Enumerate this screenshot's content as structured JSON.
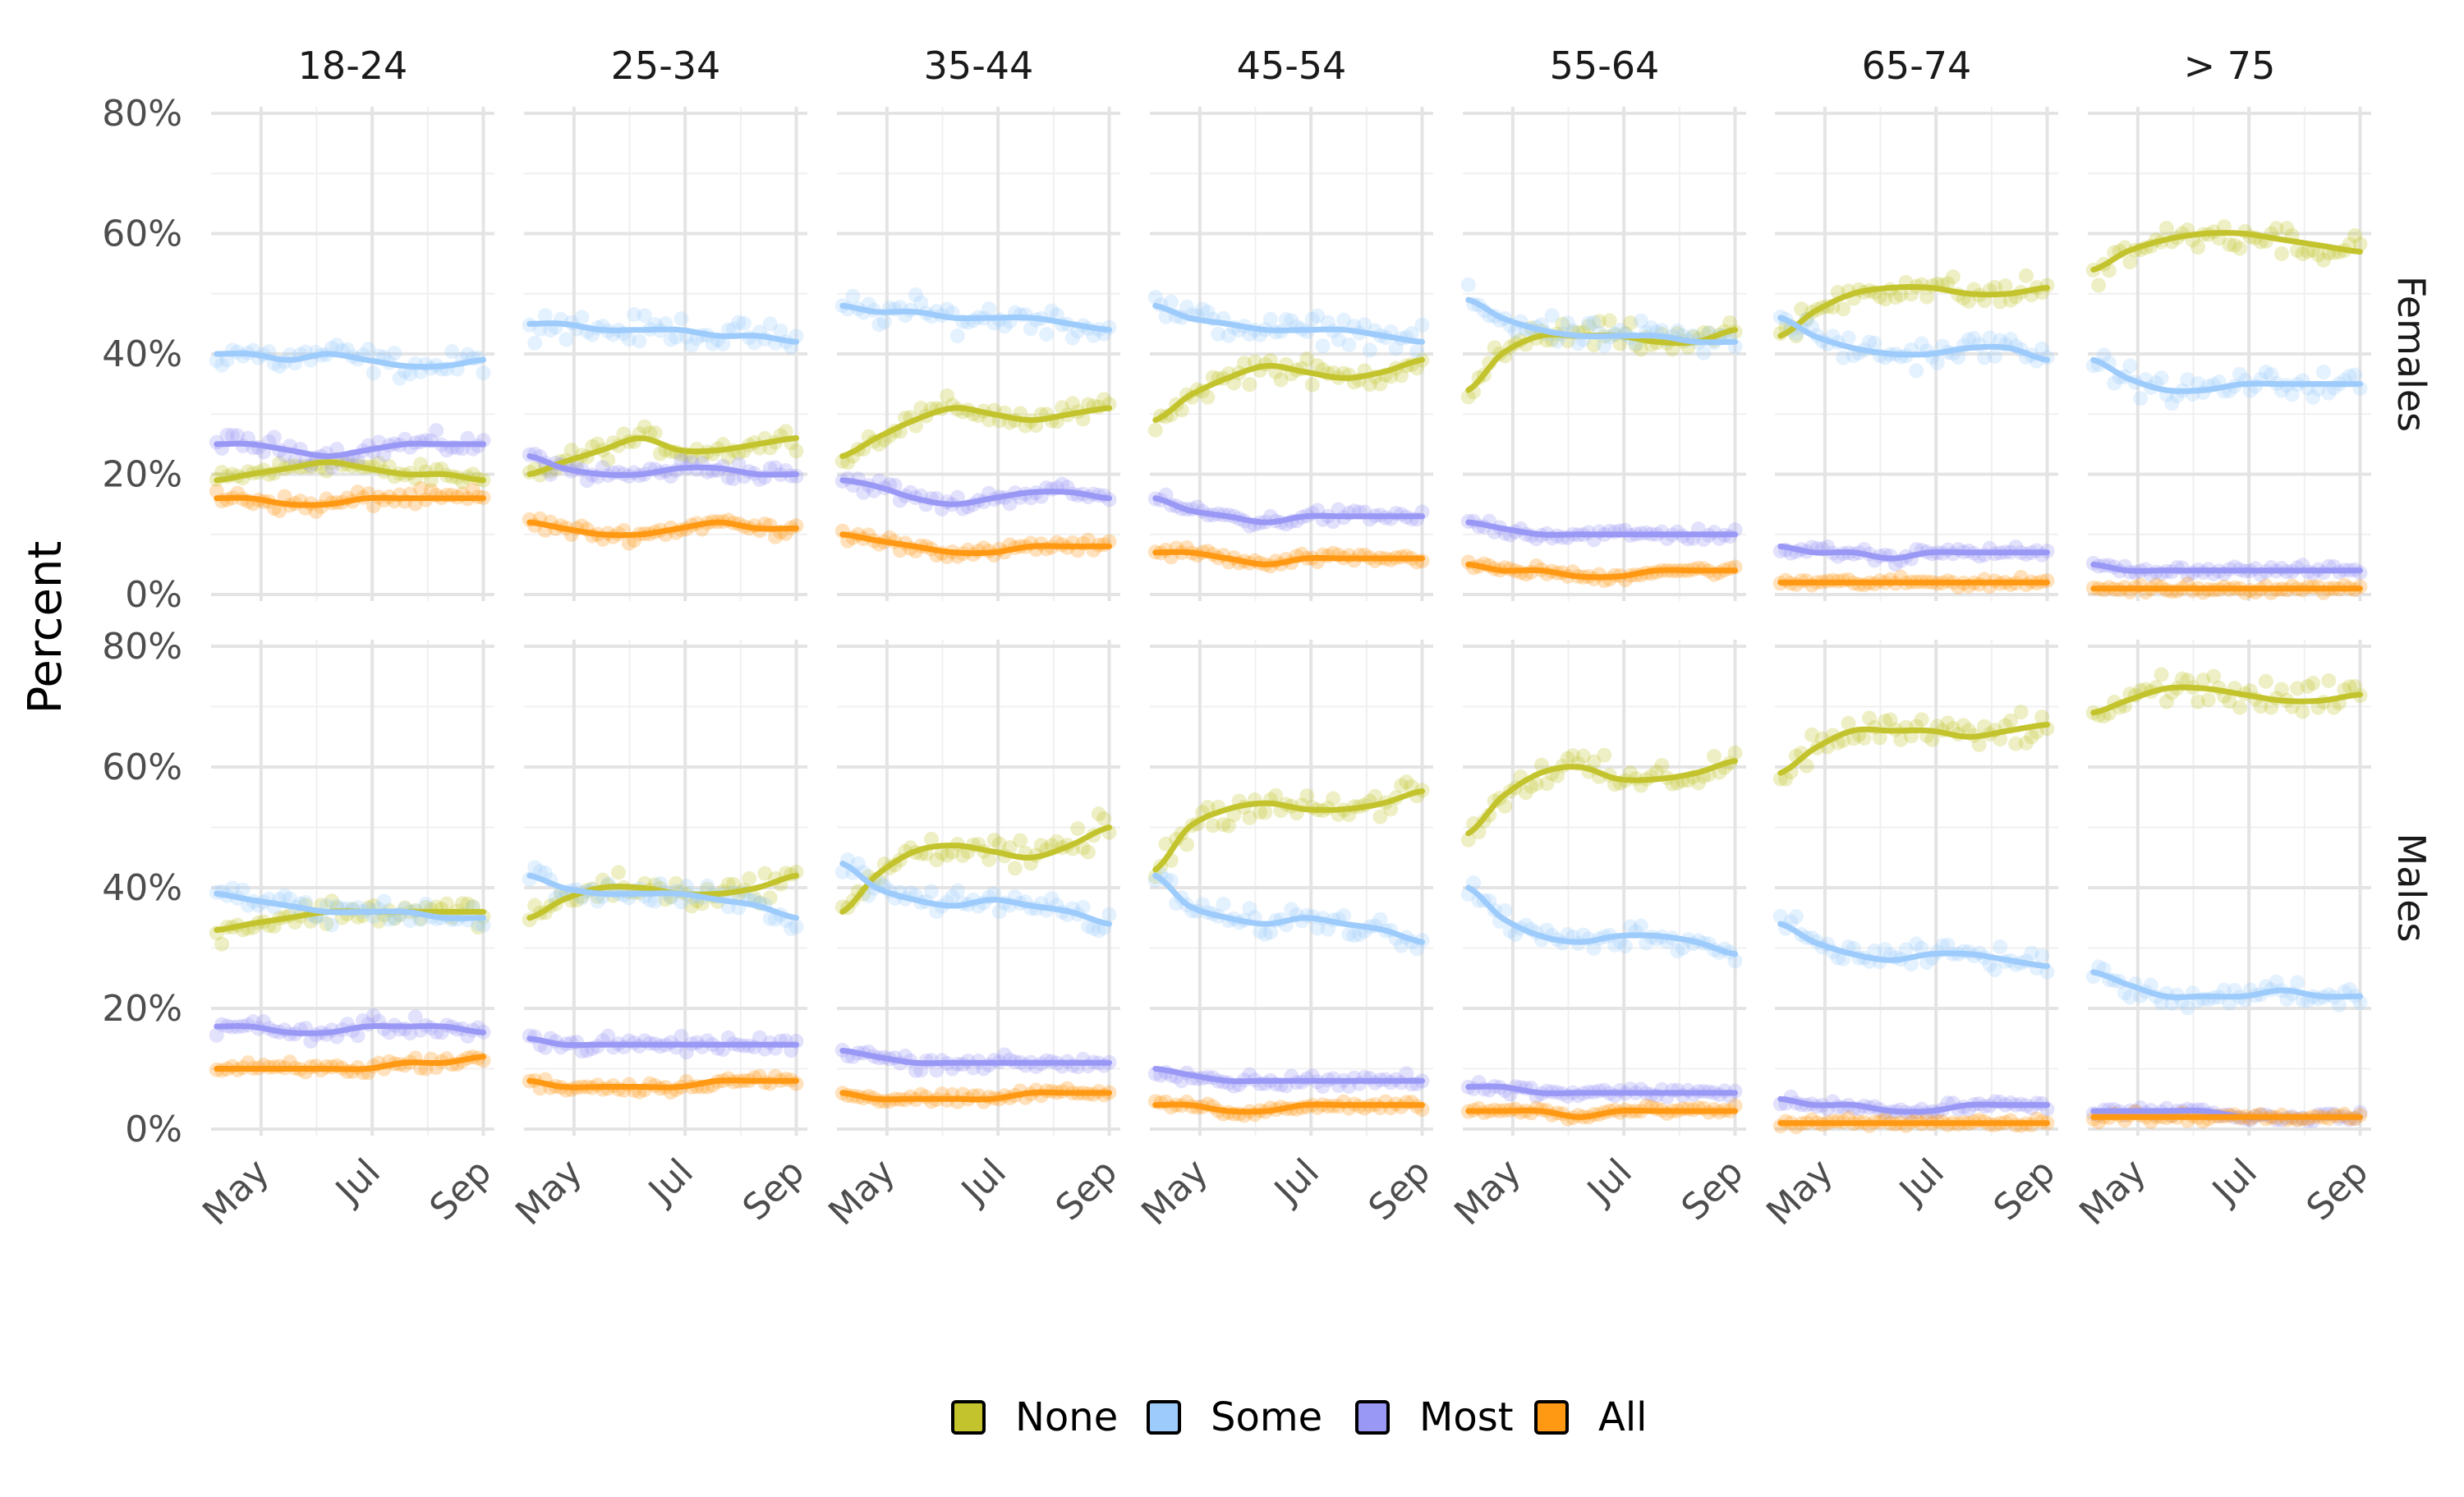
{
  "chart_data": {
    "type": "line",
    "title": "",
    "xlabel": "",
    "ylabel": "Percent",
    "x_ticks": [
      "May",
      "Jul",
      "Sep"
    ],
    "x_tick_months": [
      5,
      7,
      9
    ],
    "x_range_months": [
      4.1,
      9.2
    ],
    "y_ticks": [
      "0%",
      "20%",
      "40%",
      "60%",
      "80%"
    ],
    "y_tick_values": [
      0,
      20,
      40,
      60,
      80
    ],
    "ylim": [
      0,
      80
    ],
    "grid": true,
    "legend_position": "bottom",
    "age_groups": [
      "18-24",
      "25-34",
      "35-44",
      "45-54",
      "55-64",
      "65-74",
      "> 75"
    ],
    "sexes": [
      "Females",
      "Males"
    ],
    "smooth_months": [
      4.2,
      4.8,
      5.5,
      6.2,
      6.9,
      7.6,
      8.3,
      9.0
    ],
    "series": [
      {
        "name": "None",
        "color": "#C3C42D"
      },
      {
        "name": "Some",
        "color": "#9DCBFB"
      },
      {
        "name": "Most",
        "color": "#9A98F5"
      },
      {
        "name": "All",
        "color": "#FF9812"
      }
    ],
    "panels": [
      {
        "sex": "Females",
        "age": "18-24",
        "values": {
          "None": [
            19,
            20,
            21,
            22,
            21,
            20,
            20,
            19
          ],
          "Some": [
            40,
            40,
            39,
            40,
            39,
            38,
            38,
            39
          ],
          "Most": [
            25,
            25,
            24,
            23,
            24,
            25,
            25,
            25
          ],
          "All": [
            16,
            16,
            15,
            15,
            16,
            16,
            16,
            16
          ]
        }
      },
      {
        "sex": "Females",
        "age": "25-34",
        "values": {
          "None": [
            20,
            22,
            24,
            26,
            24,
            24,
            25,
            26
          ],
          "Some": [
            45,
            45,
            44,
            44,
            44,
            43,
            43,
            42
          ],
          "Most": [
            23,
            21,
            20,
            20,
            21,
            21,
            20,
            20
          ],
          "All": [
            12,
            11,
            10,
            10,
            11,
            12,
            11,
            11
          ]
        }
      },
      {
        "sex": "Females",
        "age": "35-44",
        "values": {
          "None": [
            23,
            26,
            29,
            31,
            30,
            29,
            30,
            31
          ],
          "Some": [
            48,
            47,
            47,
            46,
            46,
            46,
            45,
            44
          ],
          "Most": [
            19,
            18,
            16,
            15,
            16,
            17,
            17,
            16
          ],
          "All": [
            10,
            9,
            8,
            7,
            7,
            8,
            8,
            8
          ]
        }
      },
      {
        "sex": "Females",
        "age": "45-54",
        "values": {
          "None": [
            29,
            33,
            36,
            38,
            37,
            36,
            37,
            39
          ],
          "Some": [
            48,
            46,
            45,
            44,
            44,
            44,
            43,
            42
          ],
          "Most": [
            16,
            14,
            13,
            12,
            13,
            13,
            13,
            13
          ],
          "All": [
            7,
            7,
            6,
            5,
            6,
            6,
            6,
            6
          ]
        }
      },
      {
        "sex": "Females",
        "age": "55-64",
        "values": {
          "None": [
            34,
            40,
            43,
            43,
            43,
            42,
            42,
            44
          ],
          "Some": [
            49,
            46,
            44,
            43,
            43,
            43,
            42,
            42
          ],
          "Most": [
            12,
            11,
            10,
            10,
            10,
            10,
            10,
            10
          ],
          "All": [
            5,
            4,
            4,
            3,
            3,
            4,
            4,
            4
          ]
        }
      },
      {
        "sex": "Females",
        "age": "65-74",
        "values": {
          "None": [
            43,
            47,
            50,
            51,
            51,
            50,
            50,
            51
          ],
          "Some": [
            46,
            43,
            41,
            40,
            40,
            41,
            41,
            39
          ],
          "Most": [
            8,
            7,
            7,
            6,
            7,
            7,
            7,
            7
          ],
          "All": [
            2,
            2,
            2,
            2,
            2,
            2,
            2,
            2
          ]
        }
      },
      {
        "sex": "Females",
        "age": "> 75",
        "values": {
          "None": [
            54,
            57,
            59,
            60,
            60,
            59,
            58,
            57
          ],
          "Some": [
            39,
            36,
            34,
            34,
            35,
            35,
            35,
            35
          ],
          "Most": [
            5,
            4,
            4,
            4,
            4,
            4,
            4,
            4
          ],
          "All": [
            1,
            1,
            1,
            1,
            1,
            1,
            1,
            1
          ]
        }
      },
      {
        "sex": "Males",
        "age": "18-24",
        "values": {
          "None": [
            33,
            34,
            35,
            36,
            36,
            36,
            36,
            36
          ],
          "Some": [
            39,
            38,
            37,
            36,
            36,
            36,
            35,
            35
          ],
          "Most": [
            17,
            17,
            16,
            16,
            17,
            17,
            17,
            16
          ],
          "All": [
            10,
            10,
            10,
            10,
            10,
            11,
            11,
            12
          ]
        }
      },
      {
        "sex": "Males",
        "age": "25-34",
        "values": {
          "None": [
            35,
            38,
            40,
            40,
            39,
            39,
            40,
            42
          ],
          "Some": [
            42,
            40,
            39,
            39,
            39,
            38,
            37,
            35
          ],
          "Most": [
            15,
            14,
            14,
            14,
            14,
            14,
            14,
            14
          ],
          "All": [
            8,
            7,
            7,
            7,
            7,
            8,
            8,
            8
          ]
        }
      },
      {
        "sex": "Males",
        "age": "35-44",
        "values": {
          "None": [
            36,
            42,
            46,
            47,
            46,
            45,
            47,
            50
          ],
          "Some": [
            44,
            40,
            38,
            37,
            38,
            37,
            36,
            34
          ],
          "Most": [
            13,
            12,
            11,
            11,
            11,
            11,
            11,
            11
          ],
          "All": [
            6,
            5,
            5,
            5,
            5,
            6,
            6,
            6
          ]
        }
      },
      {
        "sex": "Males",
        "age": "45-54",
        "values": {
          "None": [
            43,
            50,
            53,
            54,
            53,
            53,
            54,
            56
          ],
          "Some": [
            42,
            37,
            35,
            34,
            35,
            34,
            33,
            31
          ],
          "Most": [
            10,
            9,
            8,
            8,
            8,
            8,
            8,
            8
          ],
          "All": [
            4,
            4,
            3,
            3,
            4,
            4,
            4,
            4
          ]
        }
      },
      {
        "sex": "Males",
        "age": "55-64",
        "values": {
          "None": [
            49,
            55,
            59,
            60,
            58,
            58,
            59,
            61
          ],
          "Some": [
            40,
            35,
            32,
            31,
            32,
            32,
            31,
            29
          ],
          "Most": [
            7,
            7,
            6,
            6,
            6,
            6,
            6,
            6
          ],
          "All": [
            3,
            3,
            3,
            2,
            3,
            3,
            3,
            3
          ]
        }
      },
      {
        "sex": "Males",
        "age": "65-74",
        "values": {
          "None": [
            59,
            63,
            66,
            66,
            66,
            65,
            66,
            67
          ],
          "Some": [
            34,
            31,
            29,
            28,
            29,
            29,
            28,
            27
          ],
          "Most": [
            5,
            4,
            4,
            3,
            3,
            4,
            4,
            4
          ],
          "All": [
            1,
            1,
            1,
            1,
            1,
            1,
            1,
            1
          ]
        }
      },
      {
        "sex": "Males",
        "age": "> 75",
        "values": {
          "None": [
            69,
            71,
            73,
            73,
            72,
            71,
            71,
            72
          ],
          "Some": [
            26,
            24,
            22,
            22,
            22,
            23,
            22,
            22
          ],
          "Most": [
            3,
            3,
            3,
            3,
            2,
            2,
            2,
            2
          ],
          "All": [
            2,
            2,
            2,
            2,
            2,
            2,
            2,
            2
          ]
        }
      }
    ]
  }
}
